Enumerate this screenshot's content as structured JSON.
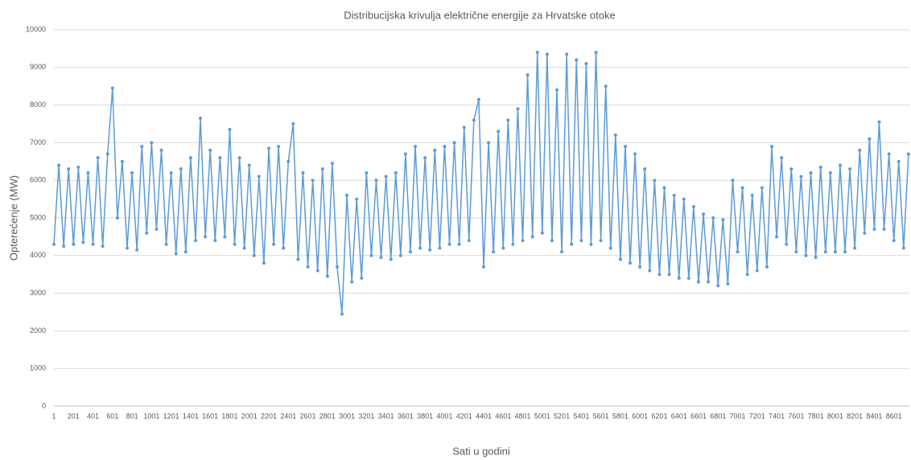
{
  "chart_data": {
    "type": "line",
    "title": "Distribucijska krivulja električne energije za Hrvatske otoke",
    "x_label": "Sati u godini",
    "y_label": "Opterećenje (MW)",
    "series": [
      {
        "name": "Opterećenje",
        "color": "#5b9bd5",
        "x": [
          1,
          51,
          101,
          151,
          201,
          251,
          301,
          351,
          401,
          451,
          501,
          551,
          601,
          651,
          701,
          751,
          801,
          851,
          901,
          951,
          1001,
          1051,
          1101,
          1151,
          1201,
          1251,
          1301,
          1351,
          1401,
          1451,
          1501,
          1551,
          1601,
          1651,
          1701,
          1751,
          1801,
          1851,
          1901,
          1951,
          2001,
          2051,
          2101,
          2151,
          2201,
          2251,
          2301,
          2351,
          2401,
          2451,
          2501,
          2551,
          2601,
          2651,
          2701,
          2751,
          2801,
          2851,
          2901,
          2951,
          3001,
          3051,
          3101,
          3151,
          3201,
          3251,
          3301,
          3351,
          3401,
          3451,
          3501,
          3551,
          3601,
          3651,
          3701,
          3751,
          3801,
          3851,
          3901,
          3951,
          4001,
          4051,
          4101,
          4151,
          4201,
          4251,
          4301,
          4351,
          4401,
          4451,
          4501,
          4551,
          4601,
          4651,
          4701,
          4751,
          4801,
          4851,
          4901,
          4951,
          5001,
          5051,
          5101,
          5151,
          5201,
          5251,
          5301,
          5351,
          5401,
          5451,
          5501,
          5551,
          5601,
          5651,
          5701,
          5751,
          5801,
          5851,
          5901,
          5951,
          6001,
          6051,
          6101,
          6151,
          6201,
          6251,
          6301,
          6351,
          6401,
          6451,
          6501,
          6551,
          6601,
          6651,
          6701,
          6751,
          6801,
          6851,
          6901,
          6951,
          7001,
          7051,
          7101,
          7151,
          7201,
          7251,
          7301,
          7351,
          7401,
          7451,
          7501,
          7551,
          7601,
          7651,
          7701,
          7751,
          7801,
          7851,
          7901,
          7951,
          8001,
          8051,
          8101,
          8151,
          8201,
          8251,
          8301,
          8351,
          8401,
          8451,
          8501,
          8551,
          8601,
          8651,
          8701,
          8751
        ],
        "values": [
          4300,
          6400,
          4250,
          6300,
          4300,
          6350,
          4350,
          6200,
          4300,
          6600,
          4250,
          6700,
          8450,
          5000,
          6500,
          4200,
          6200,
          4150,
          6900,
          4600,
          7000,
          4700,
          6800,
          4300,
          6200,
          4050,
          6300,
          4100,
          6600,
          4400,
          7650,
          4500,
          6800,
          4400,
          6600,
          4500,
          7350,
          4300,
          6600,
          4200,
          6400,
          4000,
          6100,
          3800,
          6850,
          4300,
          6900,
          4200,
          6500,
          7500,
          3900,
          6200,
          3700,
          6000,
          3600,
          6300,
          3450,
          6450,
          3700,
          2450,
          5600,
          3300,
          5500,
          3400,
          6200,
          4000,
          6000,
          3950,
          6100,
          3900,
          6200,
          4000,
          6700,
          4100,
          6900,
          4200,
          6600,
          4150,
          6800,
          4200,
          6900,
          4300,
          7000,
          4300,
          7400,
          4400,
          7600,
          8150,
          3700,
          7000,
          4100,
          7300,
          4200,
          7600,
          4300,
          7900,
          4400,
          8800,
          4500,
          9400,
          4600,
          9350,
          4400,
          8400,
          4100,
          9350,
          4300,
          9200,
          4400,
          9100,
          4300,
          9400,
          4400,
          8500,
          4200,
          7200,
          3900,
          6900,
          3800,
          6700,
          3700,
          6300,
          3600,
          6000,
          3500,
          5800,
          3500,
          5600,
          3400,
          5500,
          3400,
          5300,
          3300,
          5100,
          3300,
          5000,
          3200,
          4950,
          3250,
          6000,
          4100,
          5800,
          3500,
          5600,
          3600,
          5800,
          3700,
          6900,
          4500,
          6600,
          4300,
          6300,
          4100,
          6100,
          4000,
          6200,
          3950,
          6350,
          4100,
          6200,
          4100,
          6400,
          4100,
          6300,
          4200,
          6800,
          4600,
          7100,
          4700,
          7550,
          4700,
          6700,
          4400,
          6500,
          4200,
          6700
        ]
      }
    ],
    "xlim": [
      1,
      8760
    ],
    "xticks": [
      1,
      201,
      401,
      601,
      801,
      1001,
      1201,
      1401,
      1601,
      1801,
      2001,
      2201,
      2401,
      2601,
      2801,
      3001,
      3201,
      3401,
      3601,
      3801,
      4001,
      4201,
      4401,
      4601,
      4801,
      5001,
      5201,
      5401,
      5601,
      5801,
      6001,
      6201,
      6401,
      6601,
      6801,
      7001,
      7201,
      7401,
      7601,
      7801,
      8001,
      8201,
      8401,
      8601
    ],
    "ylim": [
      0,
      10000
    ],
    "yticks": [
      0,
      1000,
      2000,
      3000,
      4000,
      5000,
      6000,
      7000,
      8000,
      9000,
      10000
    ],
    "grid": true
  }
}
